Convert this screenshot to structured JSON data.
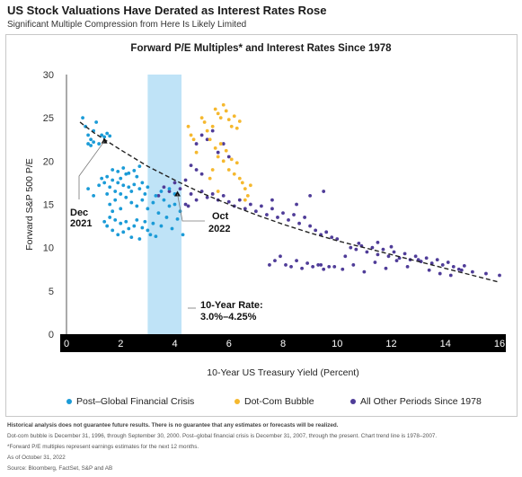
{
  "header": {
    "title": "US Stock Valuations Have Derated as Interest Rates Rose",
    "subtitle": "Significant Multiple Compression from Here Is Likely Limited"
  },
  "chart_data": {
    "type": "scatter",
    "title": "Forward P/E Multiples* and Interest Rates Since 1978",
    "xlabel": "10-Year US Treasury Yield (Percent)",
    "ylabel": "Forward S&P 500 P/E",
    "xlim": [
      0,
      16
    ],
    "ylim": [
      0,
      30
    ],
    "xticks": [
      0,
      2,
      4,
      6,
      8,
      10,
      12,
      14,
      16
    ],
    "yticks": [
      0,
      5,
      10,
      15,
      20,
      25,
      30
    ],
    "grid": false,
    "legend_position": "bottom",
    "shaded_band": {
      "x": [
        3.0,
        4.25
      ],
      "color": "#bfe3f7",
      "label_lines": [
        "10-Year Rate:",
        "3.0%–4.25%"
      ]
    },
    "trendline": {
      "points": [
        [
          0.5,
          24.5
        ],
        [
          1,
          23.3
        ],
        [
          2,
          21.3
        ],
        [
          3,
          19.4
        ],
        [
          4,
          17.8
        ],
        [
          5,
          16.3
        ],
        [
          6,
          15.0
        ],
        [
          7,
          13.8
        ],
        [
          8,
          12.7
        ],
        [
          9,
          11.7
        ],
        [
          10,
          10.8
        ],
        [
          11,
          10.0
        ],
        [
          12,
          9.2
        ],
        [
          13,
          8.4
        ],
        [
          14,
          7.6
        ],
        [
          15,
          6.8
        ],
        [
          16,
          6.0
        ]
      ],
      "color": "#222222"
    },
    "annotations": [
      {
        "lines": [
          "Dec",
          "2021"
        ],
        "x": 1.4,
        "y": 22.3
      },
      {
        "lines": [
          "Oct",
          "2022"
        ],
        "x": 4.1,
        "y": 16.2
      }
    ],
    "series": [
      {
        "name": "Post–Global Financial Crisis",
        "color": "#1b9bd7",
        "points": [
          [
            0.6,
            25
          ],
          [
            0.7,
            24
          ],
          [
            0.8,
            23
          ],
          [
            0.9,
            22.5
          ],
          [
            1.0,
            23.5
          ],
          [
            1.1,
            24.5
          ],
          [
            1.2,
            22
          ],
          [
            1.3,
            23
          ],
          [
            1.4,
            22.8
          ],
          [
            1.5,
            23.2
          ],
          [
            1.6,
            22.9
          ],
          [
            0.8,
            22
          ],
          [
            0.9,
            21.8
          ],
          [
            1.0,
            22.2
          ],
          [
            0.8,
            16.8
          ],
          [
            1.0,
            16
          ],
          [
            1.2,
            17.2
          ],
          [
            1.3,
            18
          ],
          [
            1.4,
            17.5
          ],
          [
            1.5,
            18.2
          ],
          [
            1.6,
            17
          ],
          [
            1.7,
            17.8
          ],
          [
            1.8,
            16.5
          ],
          [
            1.9,
            17.5
          ],
          [
            2.0,
            18
          ],
          [
            2.1,
            17.2
          ],
          [
            2.2,
            18.5
          ],
          [
            2.3,
            17
          ],
          [
            2.4,
            16.5
          ],
          [
            2.5,
            17.3
          ],
          [
            2.6,
            18.2
          ],
          [
            2.7,
            16.8
          ],
          [
            2.8,
            17.5
          ],
          [
            2.9,
            16.2
          ],
          [
            3.0,
            17
          ],
          [
            1.6,
            15
          ],
          [
            1.8,
            15.5
          ],
          [
            2.0,
            14.5
          ],
          [
            2.2,
            15.8
          ],
          [
            2.4,
            15.2
          ],
          [
            2.6,
            14.8
          ],
          [
            2.8,
            15.5
          ],
          [
            3.0,
            14.5
          ],
          [
            3.2,
            15.2
          ],
          [
            3.4,
            14
          ],
          [
            3.6,
            15.5
          ],
          [
            3.8,
            14.8
          ],
          [
            4.0,
            15
          ],
          [
            4.2,
            14.2
          ],
          [
            1.4,
            13
          ],
          [
            1.5,
            12.5
          ],
          [
            1.6,
            13.5
          ],
          [
            1.7,
            12
          ],
          [
            1.8,
            13.2
          ],
          [
            1.9,
            11.5
          ],
          [
            2.0,
            12.8
          ],
          [
            2.1,
            11.8
          ],
          [
            2.2,
            13
          ],
          [
            2.3,
            12.2
          ],
          [
            2.4,
            11.2
          ],
          [
            2.5,
            12.5
          ],
          [
            2.6,
            13.2
          ],
          [
            2.7,
            11
          ],
          [
            2.8,
            12.3
          ],
          [
            2.9,
            13
          ],
          [
            3.0,
            12
          ],
          [
            3.1,
            11.5
          ],
          [
            3.2,
            12.8
          ],
          [
            3.3,
            11.3
          ],
          [
            3.5,
            12.5
          ],
          [
            3.7,
            13.5
          ],
          [
            3.9,
            12.2
          ],
          [
            4.1,
            13.3
          ],
          [
            4.3,
            11.5
          ],
          [
            1.7,
            19
          ],
          [
            1.9,
            18.8
          ],
          [
            2.1,
            19.2
          ],
          [
            2.3,
            18.6
          ],
          [
            2.5,
            18.9
          ],
          [
            2.7,
            19.4
          ],
          [
            1.5,
            16.2
          ],
          [
            1.7,
            14.2
          ],
          [
            2.0,
            16.2
          ],
          [
            3.3,
            16
          ],
          [
            3.5,
            16.5
          ],
          [
            3.8,
            16.8
          ],
          [
            4.0,
            16.2
          ]
        ]
      },
      {
        "name": "Dot-Com Bubble",
        "color": "#f5b82e",
        "points": [
          [
            4.5,
            24
          ],
          [
            4.6,
            23
          ],
          [
            4.7,
            22.5
          ],
          [
            4.8,
            21
          ],
          [
            5.0,
            25
          ],
          [
            5.1,
            24.5
          ],
          [
            5.2,
            23.5
          ],
          [
            5.3,
            22.5
          ],
          [
            5.4,
            24
          ],
          [
            5.5,
            26
          ],
          [
            5.6,
            25.5
          ],
          [
            5.7,
            25
          ],
          [
            5.8,
            26.5
          ],
          [
            5.9,
            25.8
          ],
          [
            6.0,
            24.8
          ],
          [
            6.1,
            24
          ],
          [
            6.2,
            25.2
          ],
          [
            6.3,
            23.8
          ],
          [
            6.4,
            24.6
          ],
          [
            5.5,
            21.5
          ],
          [
            5.6,
            20.5
          ],
          [
            5.7,
            22
          ],
          [
            5.8,
            20
          ],
          [
            5.9,
            21.2
          ],
          [
            6.0,
            19
          ],
          [
            6.1,
            20.2
          ],
          [
            6.2,
            18.5
          ],
          [
            6.3,
            19.8
          ],
          [
            6.4,
            18
          ],
          [
            6.5,
            17.5
          ],
          [
            6.6,
            16.8
          ],
          [
            6.7,
            16
          ],
          [
            6.8,
            17.2
          ],
          [
            5.3,
            18
          ],
          [
            5.4,
            19
          ],
          [
            5.6,
            16.5
          ],
          [
            6.6,
            15.5
          ]
        ]
      },
      {
        "name": "All Other Periods Since 1978",
        "color": "#4f3c98",
        "points": [
          [
            3.4,
            16
          ],
          [
            3.6,
            17
          ],
          [
            3.8,
            16.5
          ],
          [
            4.0,
            17.5
          ],
          [
            4.2,
            16.8
          ],
          [
            4.4,
            17.8
          ],
          [
            4.6,
            16.2
          ],
          [
            4.8,
            15.5
          ],
          [
            5.0,
            16.5
          ],
          [
            5.2,
            15.8
          ],
          [
            5.4,
            16.2
          ],
          [
            5.6,
            15.5
          ],
          [
            5.8,
            16
          ],
          [
            6.0,
            15.3
          ],
          [
            6.2,
            14.8
          ],
          [
            6.4,
            15.5
          ],
          [
            6.6,
            14.5
          ],
          [
            6.8,
            15
          ],
          [
            7.0,
            14.2
          ],
          [
            7.2,
            14.8
          ],
          [
            7.4,
            13.8
          ],
          [
            7.6,
            14.5
          ],
          [
            7.8,
            13.5
          ],
          [
            8.0,
            14
          ],
          [
            8.2,
            13.2
          ],
          [
            8.4,
            13.8
          ],
          [
            8.6,
            12.8
          ],
          [
            8.8,
            13.5
          ],
          [
            9.0,
            12.5
          ],
          [
            9.2,
            12
          ],
          [
            9.4,
            11.5
          ],
          [
            9.6,
            11.8
          ],
          [
            9.8,
            11.2
          ],
          [
            10.0,
            11
          ],
          [
            8.5,
            15
          ],
          [
            9.0,
            16
          ],
          [
            9.5,
            16.5
          ],
          [
            7.6,
            15.5
          ],
          [
            4.8,
            22
          ],
          [
            5.0,
            23
          ],
          [
            5.2,
            22.5
          ],
          [
            5.4,
            23.5
          ],
          [
            5.6,
            21
          ],
          [
            5.8,
            22
          ],
          [
            6.0,
            20.5
          ],
          [
            4.6,
            19.5
          ],
          [
            4.8,
            19
          ],
          [
            5.0,
            18.5
          ],
          [
            4.4,
            15
          ],
          [
            4.5,
            14.8
          ],
          [
            7.5,
            8
          ],
          [
            7.7,
            8.5
          ],
          [
            7.9,
            9
          ],
          [
            8.1,
            8
          ],
          [
            8.3,
            7.8
          ],
          [
            8.5,
            8.5
          ],
          [
            8.7,
            7.6
          ],
          [
            8.9,
            8.2
          ],
          [
            9.1,
            7.8
          ],
          [
            9.3,
            8
          ],
          [
            9.5,
            7.5
          ],
          [
            9.7,
            7.8
          ],
          [
            10.5,
            10
          ],
          [
            10.7,
            9.8
          ],
          [
            10.9,
            10.2
          ],
          [
            11.1,
            9.5
          ],
          [
            11.3,
            10
          ],
          [
            11.5,
            9.2
          ],
          [
            11.7,
            9.8
          ],
          [
            11.9,
            9
          ],
          [
            12.1,
            9.5
          ],
          [
            12.3,
            8.8
          ],
          [
            12.5,
            9.3
          ],
          [
            12.7,
            8.6
          ],
          [
            12.9,
            9
          ],
          [
            13.1,
            8.4
          ],
          [
            13.3,
            8.8
          ],
          [
            13.5,
            8.2
          ],
          [
            13.7,
            8.6
          ],
          [
            13.9,
            8
          ],
          [
            14.1,
            8.3
          ],
          [
            14.3,
            7.8
          ],
          [
            14.5,
            7.5
          ],
          [
            14.7,
            7.9
          ],
          [
            15.0,
            7.2
          ],
          [
            10.2,
            7.5
          ],
          [
            10.6,
            8
          ],
          [
            11.0,
            7.2
          ],
          [
            11.4,
            8.3
          ],
          [
            11.8,
            7.6
          ],
          [
            12.2,
            8.5
          ],
          [
            12.6,
            7.8
          ],
          [
            13.0,
            8.6
          ],
          [
            13.4,
            7.4
          ],
          [
            13.8,
            7
          ],
          [
            14.2,
            6.8
          ],
          [
            14.6,
            7.4
          ],
          [
            15.5,
            7
          ],
          [
            16.0,
            6.8
          ],
          [
            9.4,
            8
          ],
          [
            9.9,
            7.8
          ],
          [
            10.3,
            9
          ],
          [
            10.8,
            10.5
          ],
          [
            11.5,
            10.6
          ],
          [
            12.0,
            10.1
          ]
        ]
      }
    ]
  },
  "footer": {
    "disclaimer": "Historical analysis does not guarantee future results. There is no guarantee that any estimates or forecasts will be realized.",
    "note1": "Dot-com bubble is December 31, 1996, through September 30, 2000. Post–global financial crisis is December 31, 2007, through the present. Chart trend line is 1978–2007.",
    "note2": "*Forward P/E multiples represent earnings estimates for the next 12 months.",
    "asof": "As of October 31, 2022",
    "source": "Source: Bloomberg, FactSet, S&P and AB"
  }
}
